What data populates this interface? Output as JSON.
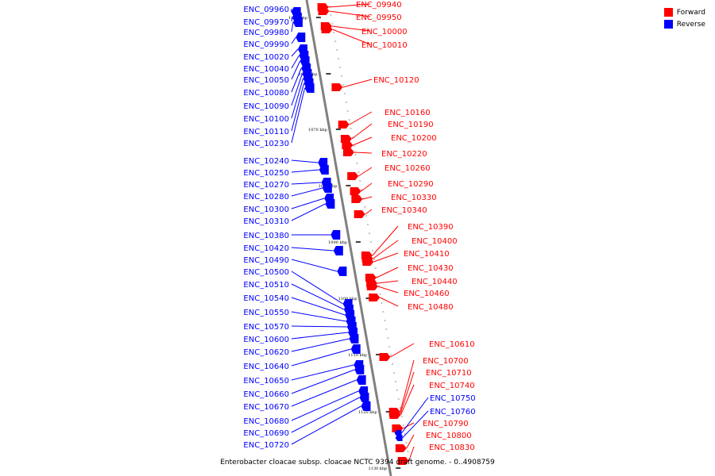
{
  "caption": "Enterobacter cloacae subsp. cloacae NCTC 9394 draft genome. - 0..4908759",
  "legend": {
    "items": [
      {
        "label": "Forward",
        "color": "#ff0000"
      },
      {
        "label": "Reverse",
        "color": "#0000ff"
      }
    ]
  },
  "colors": {
    "forward": "#ff0000",
    "reverse": "#0000ff",
    "backbone": "#808080"
  },
  "tick_labels": [
    "1050 kbp",
    "1060 kbp",
    "1070 kbp",
    "1080 kbp",
    "1090 kbp",
    "1100 kbp",
    "1110 kbp",
    "1120 kbp",
    "1130 kbp"
  ],
  "reverse_genes": [
    "ENC_09960",
    "ENC_09970",
    "ENC_09980",
    "ENC_09990",
    "ENC_10020",
    "ENC_10040",
    "ENC_10050",
    "ENC_10080",
    "ENC_10090",
    "ENC_10100",
    "ENC_10110",
    "ENC_10230",
    "ENC_10240",
    "ENC_10250",
    "ENC_10270",
    "ENC_10280",
    "ENC_10300",
    "ENC_10310",
    "ENC_10380",
    "ENC_10420",
    "ENC_10490",
    "ENC_10500",
    "ENC_10510",
    "ENC_10540",
    "ENC_10550",
    "ENC_10570",
    "ENC_10600",
    "ENC_10620",
    "ENC_10640",
    "ENC_10650",
    "ENC_10660",
    "ENC_10670",
    "ENC_10680",
    "ENC_10690",
    "ENC_10720"
  ],
  "forward_genes": [
    "ENC_09940",
    "ENC_09950",
    "ENC_10000",
    "ENC_10010",
    "ENC_10120",
    "ENC_10160",
    "ENC_10190",
    "ENC_10200",
    "ENC_10220",
    "ENC_10260",
    "ENC_10290",
    "ENC_10330",
    "ENC_10340",
    "ENC_10390",
    "ENC_10400",
    "ENC_10410",
    "ENC_10430",
    "ENC_10440",
    "ENC_10460",
    "ENC_10480",
    "ENC_10610",
    "ENC_10700",
    "ENC_10710",
    "ENC_10740",
    "ENC_10790",
    "ENC_10800",
    "ENC_10830"
  ],
  "right_reverse_genes": [
    "ENC_10750",
    "ENC_10760"
  ]
}
